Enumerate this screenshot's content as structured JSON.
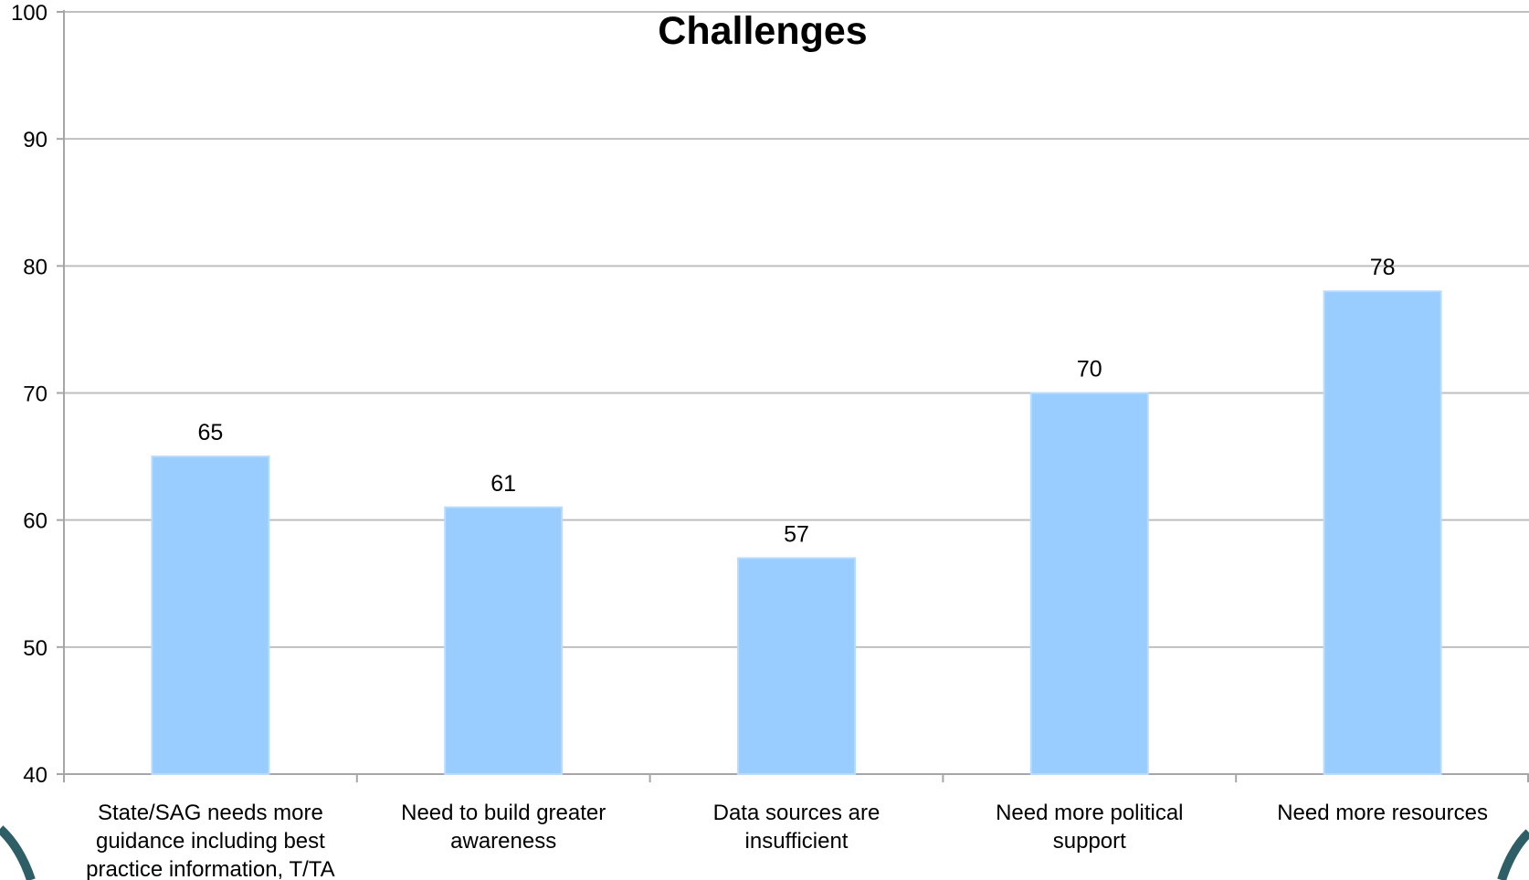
{
  "colors": {
    "bar": "#99ccff",
    "bar_edge": "#b8dcff",
    "grid": "#bfbfbf",
    "axis": "#a6a6a6",
    "text": "#000000",
    "corner_accent": "#2f5f66"
  },
  "chart_data": {
    "type": "bar",
    "title": "Challenges",
    "xlabel": "",
    "ylabel": "",
    "ylim": [
      40,
      100
    ],
    "yticks": [
      40,
      50,
      60,
      70,
      80,
      90,
      100
    ],
    "grid": true,
    "categories": [
      "State/SAG needs more guidance including best practice information, T/TA",
      "Need to build greater awareness",
      "Data sources are insufficient",
      "Need more political support",
      "Need more resources"
    ],
    "category_lines": [
      [
        "State/SAG needs more",
        "guidance including best",
        "practice information, T/TA"
      ],
      [
        "Need to build greater",
        "awareness"
      ],
      [
        "Data sources are",
        "insufficient"
      ],
      [
        "Need more political",
        "support"
      ],
      [
        "Need more resources"
      ]
    ],
    "values": [
      65,
      61,
      57,
      70,
      78
    ],
    "data_labels": [
      "65",
      "61",
      "57",
      "70",
      "78"
    ]
  }
}
